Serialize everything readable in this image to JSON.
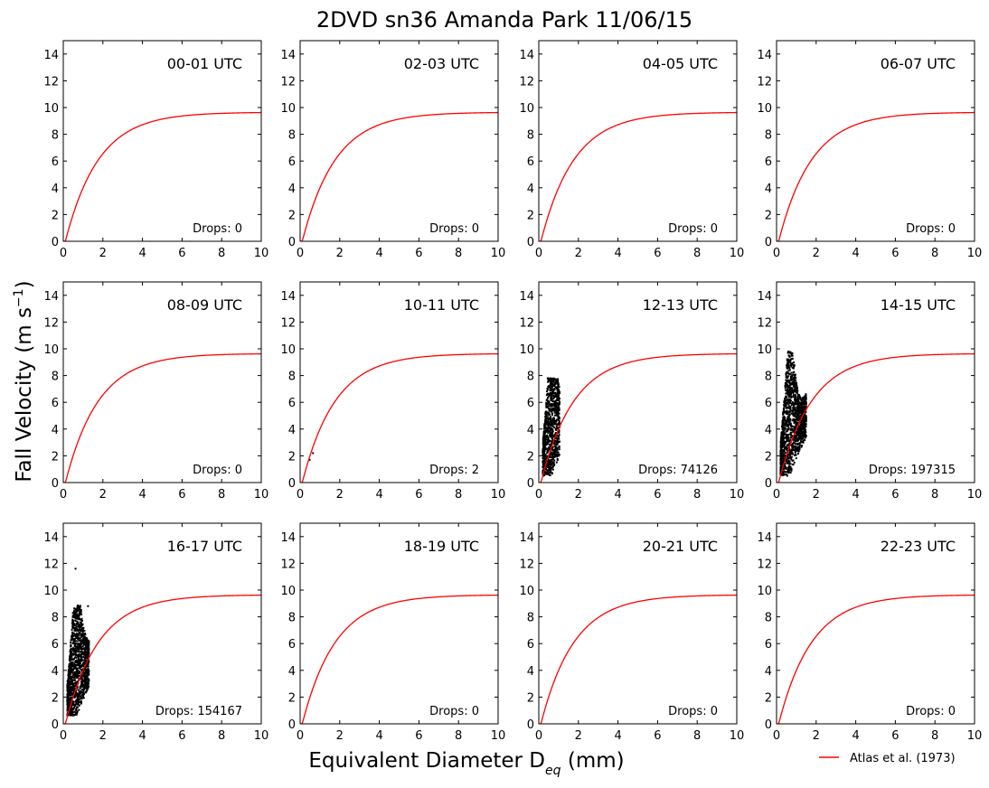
{
  "figure": {
    "title": "2DVD sn36 Amanda Park 11/06/15",
    "ylabel_prefix": "Fall Velocity (m s",
    "ylabel_exp": "−1",
    "ylabel_suffix": ")",
    "xlabel_prefix": "Equivalent Diameter D",
    "xlabel_sub": "eq",
    "xlabel_suffix": " (mm)",
    "legend_label": "Atlas et al. (1973)",
    "legend_color": "#ff0000",
    "curve_color": "#ff0000",
    "point_color": "#000000"
  },
  "chart_data": [
    {
      "type": "scatter",
      "title": "00-01 UTC",
      "drops_label": "Drops: 0",
      "drops": 0,
      "xlim": [
        0,
        10
      ],
      "ylim": [
        0,
        15
      ],
      "x_ticks": [
        "0",
        "2",
        "4",
        "6",
        "8",
        "10"
      ],
      "y_ticks": [
        "0",
        "2",
        "4",
        "6",
        "8",
        "10",
        "12",
        "14"
      ],
      "cloud": null,
      "outliers": []
    },
    {
      "type": "scatter",
      "title": "02-03 UTC",
      "drops_label": "Drops: 0",
      "drops": 0,
      "xlim": [
        0,
        10
      ],
      "ylim": [
        0,
        15
      ],
      "x_ticks": [
        "0",
        "2",
        "4",
        "6",
        "8",
        "10"
      ],
      "y_ticks": [
        "0",
        "2",
        "4",
        "6",
        "8",
        "10",
        "12",
        "14"
      ],
      "cloud": null,
      "outliers": []
    },
    {
      "type": "scatter",
      "title": "04-05 UTC",
      "drops_label": "Drops: 0",
      "drops": 0,
      "xlim": [
        0,
        10
      ],
      "ylim": [
        0,
        15
      ],
      "x_ticks": [
        "0",
        "2",
        "4",
        "6",
        "8",
        "10"
      ],
      "y_ticks": [
        "0",
        "2",
        "4",
        "6",
        "8",
        "10",
        "12",
        "14"
      ],
      "cloud": null,
      "outliers": []
    },
    {
      "type": "scatter",
      "title": "06-07 UTC",
      "drops_label": "Drops: 0",
      "drops": 0,
      "xlim": [
        0,
        10
      ],
      "ylim": [
        0,
        15
      ],
      "x_ticks": [
        "0",
        "2",
        "4",
        "6",
        "8",
        "10"
      ],
      "y_ticks": [
        "0",
        "2",
        "4",
        "6",
        "8",
        "10",
        "12",
        "14"
      ],
      "cloud": null,
      "outliers": []
    },
    {
      "type": "scatter",
      "title": "08-09 UTC",
      "drops_label": "Drops: 0",
      "drops": 0,
      "xlim": [
        0,
        10
      ],
      "ylim": [
        0,
        15
      ],
      "x_ticks": [
        "0",
        "2",
        "4",
        "6",
        "8",
        "10"
      ],
      "y_ticks": [
        "0",
        "2",
        "4",
        "6",
        "8",
        "10",
        "12",
        "14"
      ],
      "cloud": null,
      "outliers": []
    },
    {
      "type": "scatter",
      "title": "10-11 UTC",
      "drops_label": "Drops: 2",
      "drops": 2,
      "xlim": [
        0,
        10
      ],
      "ylim": [
        0,
        15
      ],
      "x_ticks": [
        "0",
        "2",
        "4",
        "6",
        "8",
        "10"
      ],
      "y_ticks": [
        "0",
        "2",
        "4",
        "6",
        "8",
        "10",
        "12",
        "14"
      ],
      "cloud": null,
      "outliers": [
        [
          0.48,
          1.7
        ],
        [
          0.65,
          2.2
        ]
      ]
    },
    {
      "type": "scatter",
      "title": "12-13 UTC",
      "drops_label": "Drops: 74126",
      "drops": 74126,
      "xlim": [
        0,
        10
      ],
      "ylim": [
        0,
        15
      ],
      "x_ticks": [
        "0",
        "2",
        "4",
        "6",
        "8",
        "10"
      ],
      "y_ticks": [
        "0",
        "2",
        "4",
        "6",
        "8",
        "10",
        "12",
        "14"
      ],
      "cloud": {
        "dmin": 0.2,
        "dmax": 1.05,
        "vmin": 0.5,
        "vtop": 7.8,
        "n": 900
      },
      "outliers": [
        [
          0.45,
          7.8
        ],
        [
          0.9,
          4.2
        ]
      ]
    },
    {
      "type": "scatter",
      "title": "14-15 UTC",
      "drops_label": "Drops: 197315",
      "drops": 197315,
      "xlim": [
        0,
        10
      ],
      "ylim": [
        0,
        15
      ],
      "x_ticks": [
        "0",
        "2",
        "4",
        "6",
        "8",
        "10"
      ],
      "y_ticks": [
        "0",
        "2",
        "4",
        "6",
        "8",
        "10",
        "12",
        "14"
      ],
      "cloud": {
        "dmin": 0.2,
        "dmax": 1.5,
        "vmin": 0.5,
        "vtop": 9.8,
        "n": 1400
      },
      "outliers": [
        [
          0.6,
          9.8
        ],
        [
          1.4,
          5.1
        ]
      ]
    },
    {
      "type": "scatter",
      "title": "16-17 UTC",
      "drops_label": "Drops: 154167",
      "drops": 154167,
      "xlim": [
        0,
        10
      ],
      "ylim": [
        0,
        15
      ],
      "x_ticks": [
        "0",
        "2",
        "4",
        "6",
        "8",
        "10"
      ],
      "y_ticks": [
        "0",
        "2",
        "4",
        "6",
        "8",
        "10",
        "12",
        "14"
      ],
      "cloud": {
        "dmin": 0.2,
        "dmax": 1.3,
        "vmin": 0.6,
        "vtop": 8.9,
        "n": 1300
      },
      "outliers": [
        [
          0.62,
          11.6
        ],
        [
          1.25,
          8.8
        ],
        [
          1.3,
          5.3
        ]
      ]
    },
    {
      "type": "scatter",
      "title": "18-19 UTC",
      "drops_label": "Drops: 0",
      "drops": 0,
      "xlim": [
        0,
        10
      ],
      "ylim": [
        0,
        15
      ],
      "x_ticks": [
        "0",
        "2",
        "4",
        "6",
        "8",
        "10"
      ],
      "y_ticks": [
        "0",
        "2",
        "4",
        "6",
        "8",
        "10",
        "12",
        "14"
      ],
      "cloud": null,
      "outliers": []
    },
    {
      "type": "scatter",
      "title": "20-21 UTC",
      "drops_label": "Drops: 0",
      "drops": 0,
      "xlim": [
        0,
        10
      ],
      "ylim": [
        0,
        15
      ],
      "x_ticks": [
        "0",
        "2",
        "4",
        "6",
        "8",
        "10"
      ],
      "y_ticks": [
        "0",
        "2",
        "4",
        "6",
        "8",
        "10",
        "12",
        "14"
      ],
      "cloud": null,
      "outliers": []
    },
    {
      "type": "scatter",
      "title": "22-23 UTC",
      "drops_label": "Drops: 0",
      "drops": 0,
      "xlim": [
        0,
        10
      ],
      "ylim": [
        0,
        15
      ],
      "x_ticks": [
        "0",
        "2",
        "4",
        "6",
        "8",
        "10"
      ],
      "y_ticks": [
        "0",
        "2",
        "4",
        "6",
        "8",
        "10",
        "12",
        "14"
      ],
      "cloud": null,
      "outliers": []
    }
  ]
}
